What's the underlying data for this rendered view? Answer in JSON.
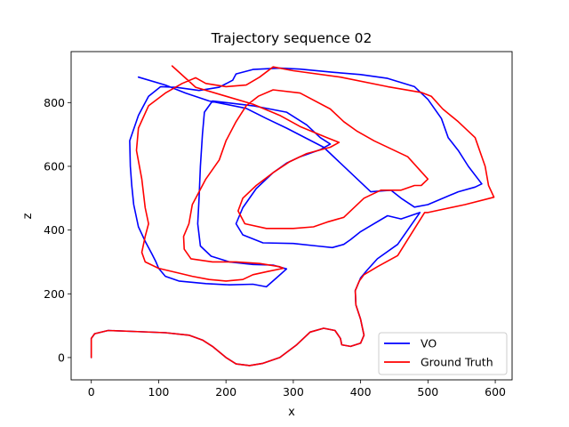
{
  "chart_data": {
    "type": "line",
    "title": "Trajectory sequence 02",
    "xlabel": "x",
    "ylabel": "z",
    "xlim": [
      -30,
      625
    ],
    "ylim": [
      -70,
      960
    ],
    "xticks": [
      0,
      100,
      200,
      300,
      400,
      500,
      600
    ],
    "yticks": [
      0,
      200,
      400,
      600,
      800
    ],
    "grid": false,
    "legend_position": "lower-right",
    "series": [
      {
        "name": "VO",
        "color": "#0000ff",
        "points": [
          [
            0,
            0
          ],
          [
            0,
            60
          ],
          [
            5,
            75
          ],
          [
            25,
            85
          ],
          [
            60,
            82
          ],
          [
            110,
            78
          ],
          [
            145,
            70
          ],
          [
            165,
            55
          ],
          [
            180,
            35
          ],
          [
            200,
            0
          ],
          [
            215,
            -20
          ],
          [
            235,
            -25
          ],
          [
            255,
            -18
          ],
          [
            280,
            0
          ],
          [
            305,
            40
          ],
          [
            325,
            80
          ],
          [
            345,
            92
          ],
          [
            362,
            85
          ],
          [
            370,
            60
          ],
          [
            372,
            40
          ],
          [
            385,
            35
          ],
          [
            400,
            45
          ],
          [
            405,
            70
          ],
          [
            400,
            120
          ],
          [
            393,
            165
          ],
          [
            392,
            210
          ],
          [
            400,
            250
          ],
          [
            410,
            275
          ],
          [
            425,
            310
          ],
          [
            455,
            355
          ],
          [
            488,
            455
          ],
          [
            460,
            435
          ],
          [
            440,
            445
          ],
          [
            400,
            395
          ],
          [
            385,
            370
          ],
          [
            375,
            355
          ],
          [
            358,
            345
          ],
          [
            335,
            350
          ],
          [
            300,
            358
          ],
          [
            255,
            360
          ],
          [
            225,
            385
          ],
          [
            215,
            420
          ],
          [
            225,
            470
          ],
          [
            245,
            530
          ],
          [
            270,
            580
          ],
          [
            290,
            610
          ],
          [
            310,
            630
          ],
          [
            340,
            652
          ],
          [
            355,
            670
          ],
          [
            340,
            690
          ],
          [
            320,
            730
          ],
          [
            290,
            770
          ],
          [
            240,
            790
          ],
          [
            200,
            800
          ],
          [
            180,
            805
          ],
          [
            168,
            770
          ],
          [
            165,
            700
          ],
          [
            162,
            600
          ],
          [
            160,
            500
          ],
          [
            158,
            420
          ],
          [
            162,
            350
          ],
          [
            178,
            318
          ],
          [
            205,
            300
          ],
          [
            240,
            292
          ],
          [
            270,
            290
          ],
          [
            290,
            278
          ],
          [
            275,
            250
          ],
          [
            260,
            222
          ],
          [
            240,
            230
          ],
          [
            205,
            228
          ],
          [
            170,
            232
          ],
          [
            130,
            240
          ],
          [
            110,
            255
          ],
          [
            100,
            280
          ],
          [
            96,
            300
          ],
          [
            90,
            325
          ],
          [
            80,
            365
          ],
          [
            70,
            410
          ],
          [
            63,
            480
          ],
          [
            60,
            540
          ],
          [
            58,
            600
          ],
          [
            57,
            680
          ],
          [
            70,
            760
          ],
          [
            85,
            820
          ],
          [
            103,
            850
          ],
          [
            125,
            848
          ],
          [
            160,
            838
          ],
          [
            190,
            848
          ],
          [
            210,
            870
          ],
          [
            215,
            890
          ],
          [
            240,
            904
          ],
          [
            280,
            908
          ],
          [
            310,
            905
          ],
          [
            360,
            895
          ],
          [
            400,
            888
          ],
          [
            440,
            876
          ],
          [
            480,
            850
          ],
          [
            500,
            810
          ],
          [
            520,
            750
          ],
          [
            530,
            690
          ],
          [
            545,
            650
          ],
          [
            560,
            600
          ],
          [
            580,
            545
          ],
          [
            570,
            535
          ],
          [
            545,
            520
          ],
          [
            500,
            480
          ],
          [
            480,
            472
          ],
          [
            460,
            500
          ],
          [
            445,
            525
          ],
          [
            415,
            520
          ],
          [
            345,
            660
          ],
          [
            290,
            720
          ],
          [
            260,
            750
          ],
          [
            230,
            782
          ],
          [
            175,
            805
          ],
          [
            140,
            830
          ],
          [
            110,
            855
          ],
          [
            70,
            880
          ]
        ]
      },
      {
        "name": "Ground Truth",
        "color": "#ff0000",
        "points": [
          [
            0,
            0
          ],
          [
            0,
            60
          ],
          [
            5,
            75
          ],
          [
            25,
            85
          ],
          [
            60,
            82
          ],
          [
            110,
            78
          ],
          [
            145,
            70
          ],
          [
            165,
            55
          ],
          [
            180,
            35
          ],
          [
            200,
            0
          ],
          [
            215,
            -20
          ],
          [
            235,
            -25
          ],
          [
            255,
            -18
          ],
          [
            280,
            0
          ],
          [
            305,
            40
          ],
          [
            325,
            80
          ],
          [
            345,
            92
          ],
          [
            362,
            85
          ],
          [
            370,
            60
          ],
          [
            372,
            40
          ],
          [
            385,
            35
          ],
          [
            400,
            45
          ],
          [
            405,
            70
          ],
          [
            400,
            120
          ],
          [
            393,
            165
          ],
          [
            392,
            210
          ],
          [
            398,
            240
          ],
          [
            405,
            260
          ],
          [
            425,
            285
          ],
          [
            455,
            320
          ],
          [
            495,
            455
          ],
          [
            500,
            455
          ],
          [
            555,
            480
          ],
          [
            598,
            503
          ],
          [
            590,
            540
          ],
          [
            585,
            600
          ],
          [
            570,
            690
          ],
          [
            545,
            740
          ],
          [
            522,
            780
          ],
          [
            505,
            820
          ],
          [
            490,
            832
          ],
          [
            440,
            850
          ],
          [
            370,
            880
          ],
          [
            300,
            900
          ],
          [
            270,
            912
          ],
          [
            250,
            880
          ],
          [
            230,
            855
          ],
          [
            200,
            850
          ],
          [
            170,
            860
          ],
          [
            155,
            878
          ],
          [
            135,
            860
          ],
          [
            110,
            830
          ],
          [
            85,
            790
          ],
          [
            70,
            720
          ],
          [
            67,
            650
          ],
          [
            75,
            560
          ],
          [
            80,
            470
          ],
          [
            85,
            420
          ],
          [
            80,
            380
          ],
          [
            75,
            330
          ],
          [
            80,
            300
          ],
          [
            100,
            280
          ],
          [
            130,
            265
          ],
          [
            150,
            255
          ],
          [
            175,
            245
          ],
          [
            200,
            240
          ],
          [
            225,
            245
          ],
          [
            240,
            260
          ],
          [
            262,
            270
          ],
          [
            285,
            280
          ],
          [
            280,
            285
          ],
          [
            250,
            295
          ],
          [
            215,
            300
          ],
          [
            180,
            300
          ],
          [
            148,
            310
          ],
          [
            138,
            340
          ],
          [
            137,
            380
          ],
          [
            145,
            420
          ],
          [
            150,
            480
          ],
          [
            170,
            560
          ],
          [
            190,
            620
          ],
          [
            200,
            680
          ],
          [
            215,
            740
          ],
          [
            230,
            790
          ],
          [
            248,
            820
          ],
          [
            270,
            840
          ],
          [
            310,
            830
          ],
          [
            355,
            780
          ],
          [
            375,
            740
          ],
          [
            395,
            710
          ],
          [
            420,
            680
          ],
          [
            470,
            630
          ],
          [
            500,
            560
          ],
          [
            490,
            540
          ],
          [
            480,
            540
          ],
          [
            460,
            525
          ],
          [
            430,
            525
          ],
          [
            405,
            500
          ],
          [
            375,
            440
          ],
          [
            350,
            425
          ],
          [
            330,
            410
          ],
          [
            300,
            405
          ],
          [
            260,
            405
          ],
          [
            228,
            420
          ],
          [
            218,
            460
          ],
          [
            225,
            500
          ],
          [
            245,
            540
          ],
          [
            270,
            580
          ],
          [
            295,
            615
          ],
          [
            320,
            640
          ],
          [
            355,
            660
          ],
          [
            368,
            675
          ],
          [
            350,
            690
          ],
          [
            310,
            725
          ],
          [
            280,
            760
          ],
          [
            240,
            795
          ],
          [
            200,
            820
          ],
          [
            155,
            848
          ],
          [
            120,
            915
          ]
        ]
      }
    ]
  }
}
